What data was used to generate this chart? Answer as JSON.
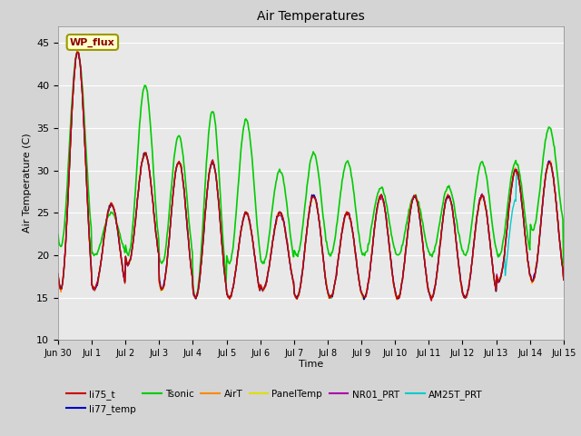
{
  "title": "Air Temperatures",
  "xlabel": "Time",
  "ylabel": "Air Temperature (C)",
  "ylim": [
    10,
    47
  ],
  "yticks": [
    10,
    15,
    20,
    25,
    30,
    35,
    40,
    45
  ],
  "fig_bg": "#d4d4d4",
  "plot_bg": "#e8e8e8",
  "series": {
    "li75_t": {
      "color": "#cc0000",
      "lw": 1.0
    },
    "li77_temp": {
      "color": "#0000cc",
      "lw": 1.0
    },
    "Tsonic": {
      "color": "#00cc00",
      "lw": 1.2
    },
    "AirT": {
      "color": "#ff8800",
      "lw": 1.0
    },
    "PanelTemp": {
      "color": "#dddd00",
      "lw": 1.0
    },
    "NR01_PRT": {
      "color": "#aa00aa",
      "lw": 1.0
    },
    "AM25T_PRT": {
      "color": "#00cccc",
      "lw": 1.0
    }
  },
  "annotation_text": "WP_flux",
  "n_points": 720,
  "x_start": 0,
  "x_end": 15.0,
  "xtick_positions": [
    0,
    1,
    2,
    3,
    4,
    5,
    6,
    7,
    8,
    9,
    10,
    11,
    12,
    13,
    14,
    15
  ],
  "xtick_labels": [
    "Jun 30",
    "Jul 1",
    "Jul 2",
    "Jul 3",
    "Jul 4",
    "Jul 5",
    "Jul 6",
    "Jul 7",
    "Jul 8",
    "Jul 9",
    "Jul 10",
    "Jul 11",
    "Jul 12",
    "Jul 13",
    "Jul 14",
    "Jul 15"
  ],
  "base_maxes": [
    44,
    26,
    32,
    31,
    31,
    25,
    25,
    27,
    25,
    27,
    27,
    27,
    27,
    30,
    31,
    19
  ],
  "base_mins": [
    16,
    16,
    19,
    16,
    15,
    15,
    16,
    15,
    15,
    15,
    15,
    15,
    15,
    17,
    17,
    17
  ],
  "tsonic_maxes": [
    44,
    25,
    40,
    34,
    37,
    36,
    30,
    32,
    31,
    28,
    27,
    28,
    31,
    31,
    35,
    23
  ],
  "tsonic_mins": [
    21,
    20,
    20,
    19,
    15,
    19,
    19,
    20,
    20,
    20,
    20,
    20,
    20,
    20,
    23,
    18
  ],
  "peak_phase": 0.58,
  "grid_color": "#ffffff",
  "grid_lw": 0.8
}
